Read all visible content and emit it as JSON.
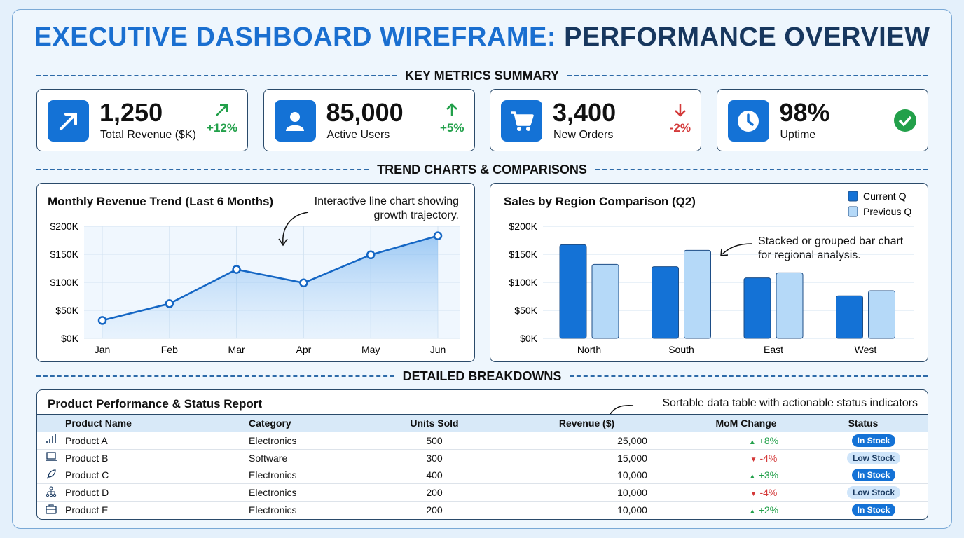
{
  "title": {
    "part1": "EXECUTIVE DASHBOARD WIREFRAME:",
    "part2": "PERFORMANCE OVERVIEW"
  },
  "sections": {
    "kpi": "KEY METRICS SUMMARY",
    "trend": "TREND CHARTS & COMPARISONS",
    "detail": "DETAILED BREAKDOWNS"
  },
  "colors": {
    "accent": "#1472d6",
    "light": "#b5d9f8",
    "up": "#22a04a",
    "down": "#d43a3a",
    "navy": "#17375e"
  },
  "kpis": [
    {
      "icon": "trend-arrow-icon",
      "value": "1,250",
      "label": "Total Revenue ($K)",
      "delta": "+12%",
      "direction": "up",
      "delta_icon": "arrow-up-right-icon"
    },
    {
      "icon": "user-icon",
      "value": "85,000",
      "label": "Active Users",
      "delta": "+5%",
      "direction": "up",
      "delta_icon": "arrow-up-icon"
    },
    {
      "icon": "cart-icon",
      "value": "3,400",
      "label": "New Orders",
      "delta": "-2%",
      "direction": "down",
      "delta_icon": "arrow-down-icon"
    },
    {
      "icon": "clock-icon",
      "value": "98%",
      "label": "Uptime",
      "delta": "",
      "direction": "ok",
      "delta_icon": "check-circle-icon"
    }
  ],
  "chart_data": [
    {
      "type": "area",
      "title": "Monthly Revenue Trend (Last 6 Months)",
      "annotation": "Interactive line chart showing growth trajectory.",
      "categories": [
        "Jan",
        "Feb",
        "Mar",
        "Apr",
        "May",
        "Jun"
      ],
      "values": [
        32,
        62,
        123,
        99,
        149,
        183
      ],
      "unit": "$K",
      "yticks": [
        "$0K",
        "$50K",
        "$100K",
        "$150K",
        "$200K"
      ],
      "ylim": [
        0,
        200
      ],
      "grid": true
    },
    {
      "type": "bar",
      "title": "Sales by Region Comparison (Q2)",
      "annotation": "Stacked or grouped bar chart for regional analysis.",
      "categories": [
        "North",
        "South",
        "East",
        "West"
      ],
      "series": [
        {
          "name": "Current Q",
          "values": [
            167,
            128,
            108,
            76
          ]
        },
        {
          "name": "Previous Q",
          "values": [
            132,
            157,
            117,
            85
          ]
        }
      ],
      "unit": "$K",
      "yticks": [
        "$0K",
        "$50K",
        "$100K",
        "$150K",
        "$200K"
      ],
      "ylim": [
        0,
        200
      ],
      "grid": true,
      "legend": "top-right"
    }
  ],
  "table": {
    "title": "Product Performance & Status Report",
    "annotation": "Sortable data table with actionable status indicators",
    "columns": [
      "Product Name",
      "Category",
      "Units Sold",
      "Revenue ($)",
      "MoM Change",
      "Status"
    ],
    "rows": [
      {
        "icon": "bar-chart-icon",
        "name": "Product A",
        "category": "Electronics",
        "units": "500",
        "revenue": "25,000",
        "mom": "+8%",
        "dir": "up",
        "status": "In Stock"
      },
      {
        "icon": "laptop-icon",
        "name": "Product B",
        "category": "Software",
        "units": "300",
        "revenue": "15,000",
        "mom": "-4%",
        "dir": "down",
        "status": "Low Stock"
      },
      {
        "icon": "rocket-icon",
        "name": "Product C",
        "category": "Electronics",
        "units": "400",
        "revenue": "10,000",
        "mom": "+3%",
        "dir": "up",
        "status": "In Stock"
      },
      {
        "icon": "hierarchy-icon",
        "name": "Product D",
        "category": "Electronics",
        "units": "200",
        "revenue": "10,000",
        "mom": "-4%",
        "dir": "down",
        "status": "Low Stock"
      },
      {
        "icon": "briefcase-icon",
        "name": "Product E",
        "category": "Electronics",
        "units": "200",
        "revenue": "10,000",
        "mom": "+2%",
        "dir": "up",
        "status": "In Stock"
      }
    ]
  }
}
